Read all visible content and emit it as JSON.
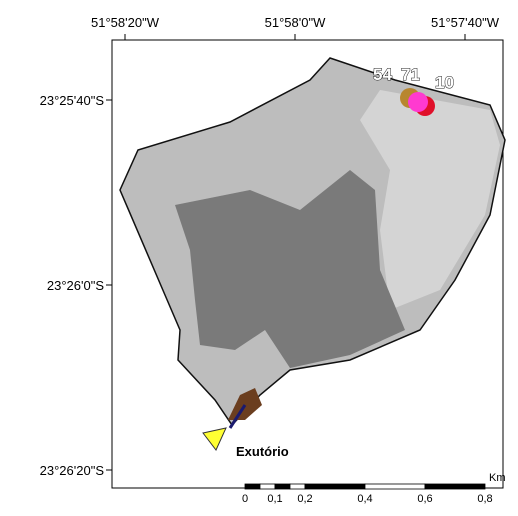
{
  "map": {
    "x_labels": [
      "51°58'20\"W",
      "51°58'0\"W",
      "51°57'40\"W"
    ],
    "y_labels": [
      "23°25'40\"S",
      "23°26'0\"S",
      "23°26'20\"S"
    ],
    "points": [
      {
        "label": "54"
      },
      {
        "label": "71"
      },
      {
        "label": "10"
      }
    ],
    "outlet": {
      "label": "Exutório"
    },
    "scale_bar": {
      "unit": "Km",
      "labels": [
        "0",
        "0,1",
        "0,2",
        "0,4",
        "0,6",
        "0,8"
      ]
    }
  }
}
